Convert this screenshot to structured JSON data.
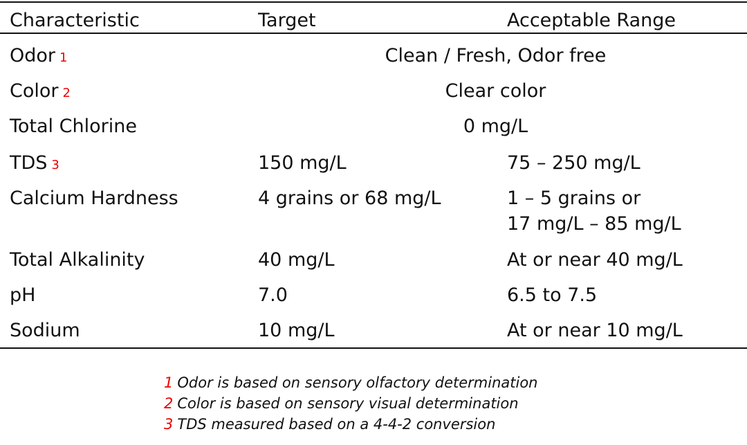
{
  "table": {
    "headers": [
      "Characteristic",
      "Target",
      "Acceptable Range"
    ],
    "rows": [
      {
        "name": "Odor",
        "note": "1",
        "span": "Clean / Fresh, Odor free"
      },
      {
        "name": "Color",
        "note": "2",
        "span": "Clear color"
      },
      {
        "name": "Total Chlorine",
        "span": "0 mg/L"
      },
      {
        "name": "TDS",
        "note": "3",
        "target": "150 mg/L",
        "range": [
          "75 – 250 mg/L"
        ]
      },
      {
        "name": "Calcium Hardness",
        "target": "4 grains or 68 mg/L",
        "range": [
          "1 – 5 grains or",
          "17 mg/L – 85 mg/L"
        ]
      },
      {
        "name": "Total Alkalinity",
        "target": "40 mg/L",
        "range": [
          "At or near 40 mg/L"
        ]
      },
      {
        "name": "pH",
        "target": "7.0",
        "range": [
          "6.5 to 7.5"
        ]
      },
      {
        "name": "Sodium",
        "target": "10 mg/L",
        "range": [
          "At or near 10 mg/L"
        ]
      }
    ]
  },
  "footnotes": [
    {
      "mark": "1",
      "text": "Odor is based on sensory olfactory determination"
    },
    {
      "mark": "2",
      "text": "Color is based on sensory visual determination"
    },
    {
      "mark": "3",
      "text": "TDS measured based on a 4-4-2 conversion"
    }
  ]
}
